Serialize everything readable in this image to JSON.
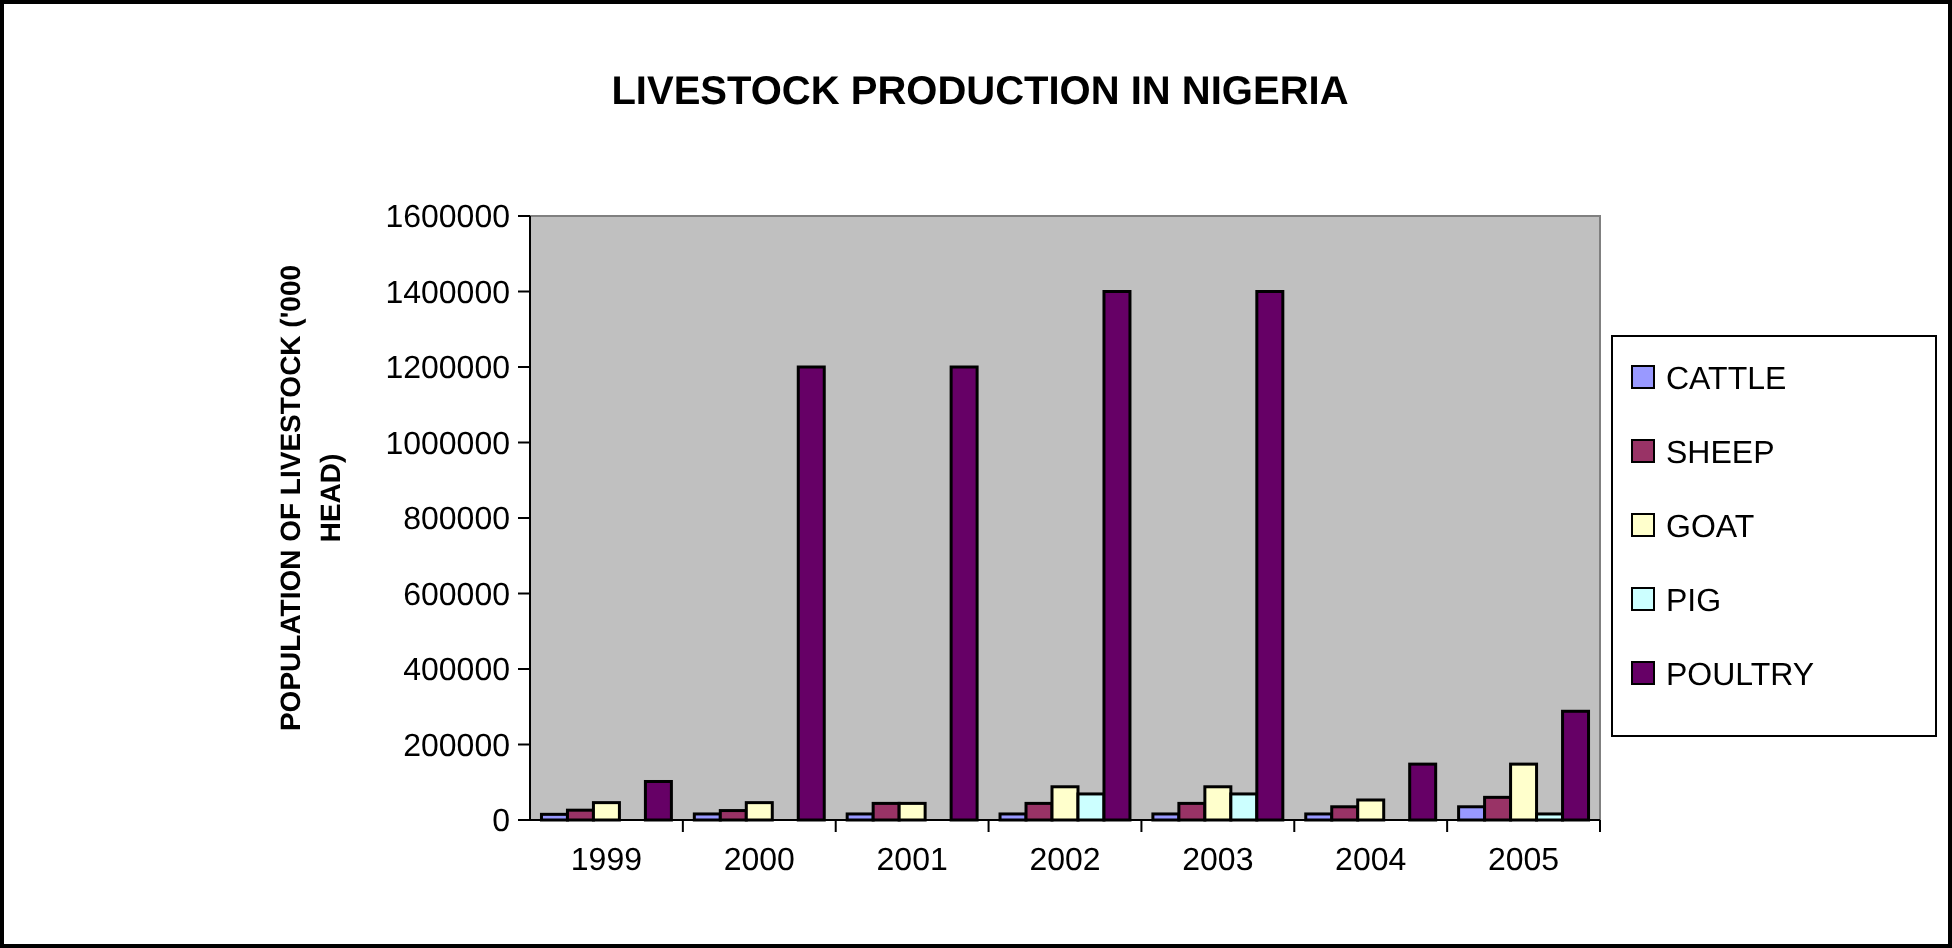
{
  "chart_data": {
    "type": "bar",
    "title": "LIVESTOCK PRODUCTION IN NIGERIA",
    "ylabel": "POPULATION OF LIVESTOCK ('000 HEAD)",
    "categories": [
      "1999",
      "2000",
      "2001",
      "2002",
      "2003",
      "2004",
      "2005"
    ],
    "series": [
      {
        "name": "CATTLE",
        "color": "#9999ff",
        "values": [
          15000,
          16000,
          16000,
          16000,
          16000,
          16000,
          35000
        ]
      },
      {
        "name": "SHEEP",
        "color": "#993366",
        "values": [
          26000,
          25000,
          44000,
          44000,
          44000,
          35000,
          60000
        ]
      },
      {
        "name": "GOAT",
        "color": "#ffffcc",
        "values": [
          46000,
          46000,
          44000,
          88000,
          88000,
          53000,
          148000
        ]
      },
      {
        "name": "PIG",
        "color": "#ccffff",
        "values": [
          null,
          null,
          null,
          69000,
          69000,
          null,
          16000
        ]
      },
      {
        "name": "POULTRY",
        "color": "#660066",
        "values": [
          102000,
          1200000,
          1200000,
          1400000,
          1400000,
          148000,
          288000
        ]
      }
    ],
    "ylim": [
      0,
      1600000
    ],
    "yticks": [
      0,
      200000,
      400000,
      600000,
      800000,
      1000000,
      1200000,
      1400000,
      1600000
    ],
    "grid": false,
    "legend": "right"
  }
}
